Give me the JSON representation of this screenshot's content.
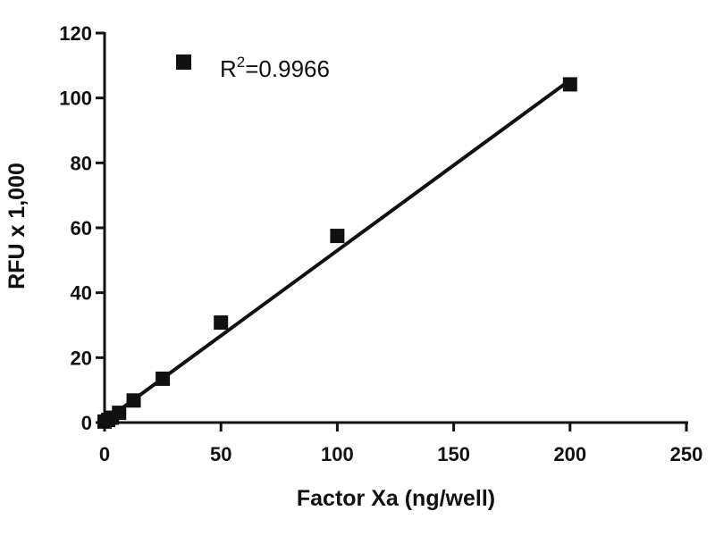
{
  "chart_data": {
    "type": "scatter",
    "xlabel": "Factor Xa (ng/well)",
    "ylabel": "RFU x 1,000",
    "xlim": [
      0,
      250
    ],
    "ylim": [
      0,
      120
    ],
    "xticks": [
      "0",
      "50",
      "100",
      "150",
      "200",
      "250"
    ],
    "yticks": [
      "0",
      "20",
      "40",
      "60",
      "80",
      "100",
      "120"
    ],
    "grid": false,
    "legend_position": "top-left",
    "series": [
      {
        "marker": "square",
        "color": "#111111",
        "x": [
          0,
          1.5625,
          3.125,
          6.25,
          12.5,
          25,
          50,
          100,
          200
        ],
        "y": [
          0.3,
          0.8,
          1.5,
          3.0,
          6.8,
          13.5,
          30.8,
          57.5,
          104.2
        ]
      }
    ],
    "fit_line": {
      "slope": 0.525,
      "intercept": 0.5,
      "x_range": [
        0,
        200
      ]
    },
    "annotation": {
      "prefix": "R",
      "superscript": "2",
      "suffix": "=0.9966"
    }
  }
}
